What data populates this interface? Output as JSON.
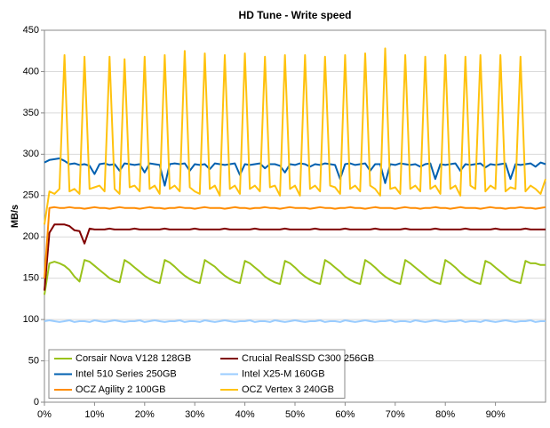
{
  "chart_data": {
    "type": "line",
    "title": "HD Tune - Write speed",
    "y_label": "MB/s",
    "xlim": [
      0,
      100
    ],
    "xticks": [
      {
        "value": 0,
        "label": "0%"
      },
      {
        "value": 10,
        "label": "10%"
      },
      {
        "value": 20,
        "label": "20%"
      },
      {
        "value": 30,
        "label": "30%"
      },
      {
        "value": 40,
        "label": "40%"
      },
      {
        "value": 50,
        "label": "50%"
      },
      {
        "value": 60,
        "label": "60%"
      },
      {
        "value": 70,
        "label": "70%"
      },
      {
        "value": 80,
        "label": "80%"
      },
      {
        "value": 90,
        "label": "90%"
      }
    ],
    "ylim": [
      0,
      450
    ],
    "yticks": [
      0,
      50,
      100,
      150,
      200,
      250,
      300,
      350,
      400,
      450
    ],
    "grid": true,
    "legend": "lower left",
    "x": [
      0,
      1,
      2,
      3,
      4,
      5,
      6,
      7,
      8,
      9,
      10,
      11,
      12,
      13,
      14,
      15,
      16,
      17,
      18,
      19,
      20,
      21,
      22,
      23,
      24,
      25,
      26,
      27,
      28,
      29,
      30,
      31,
      32,
      33,
      34,
      35,
      36,
      37,
      38,
      39,
      40,
      41,
      42,
      43,
      44,
      45,
      46,
      47,
      48,
      49,
      50,
      51,
      52,
      53,
      54,
      55,
      56,
      57,
      58,
      59,
      60,
      61,
      62,
      63,
      64,
      65,
      66,
      67,
      68,
      69,
      70,
      71,
      72,
      73,
      74,
      75,
      76,
      77,
      78,
      79,
      80,
      81,
      82,
      83,
      84,
      85,
      86,
      87,
      88,
      89,
      90,
      91,
      92,
      93,
      94,
      95,
      96,
      97,
      98,
      99,
      100
    ],
    "series": [
      {
        "name": "Corsair Nova V128 128GB",
        "color": "#99c21a",
        "values": [
          130,
          168,
          170,
          168,
          165,
          160,
          152,
          146,
          172,
          170,
          165,
          160,
          155,
          150,
          147,
          145,
          172,
          168,
          163,
          158,
          153,
          149,
          146,
          144,
          172,
          169,
          164,
          158,
          153,
          149,
          146,
          144,
          172,
          168,
          164,
          158,
          153,
          149,
          146,
          144,
          171,
          168,
          163,
          158,
          152,
          148,
          145,
          143,
          171,
          168,
          163,
          157,
          152,
          148,
          145,
          143,
          172,
          168,
          163,
          158,
          152,
          148,
          145,
          143,
          172,
          168,
          163,
          157,
          152,
          148,
          145,
          143,
          172,
          168,
          163,
          158,
          153,
          148,
          145,
          143,
          172,
          168,
          163,
          157,
          152,
          148,
          145,
          143,
          171,
          168,
          163,
          158,
          153,
          148,
          146,
          144,
          171,
          168,
          168,
          166,
          166
        ]
      },
      {
        "name": "Crucial RealSSD C300 256GB",
        "color": "#800000",
        "values": [
          135,
          205,
          215,
          215,
          215,
          213,
          208,
          207,
          192,
          210,
          209,
          209,
          209,
          210,
          209,
          209,
          209,
          209,
          210,
          209,
          209,
          209,
          209,
          209,
          210,
          209,
          209,
          209,
          209,
          209,
          210,
          209,
          209,
          209,
          209,
          209,
          210,
          209,
          209,
          209,
          209,
          209,
          210,
          209,
          209,
          209,
          209,
          209,
          210,
          209,
          209,
          209,
          209,
          209,
          210,
          209,
          209,
          209,
          209,
          209,
          210,
          209,
          209,
          209,
          209,
          209,
          210,
          209,
          209,
          209,
          209,
          209,
          210,
          209,
          209,
          209,
          209,
          209,
          210,
          209,
          209,
          209,
          209,
          209,
          210,
          209,
          209,
          209,
          209,
          209,
          210,
          209,
          209,
          209,
          209,
          209,
          210,
          209,
          209,
          209,
          209
        ]
      },
      {
        "name": "Intel 510 Series 250GB",
        "color": "#0060b0",
        "values": [
          290,
          293,
          294,
          295,
          292,
          288,
          289,
          287,
          288,
          286,
          276,
          288,
          289,
          287,
          288,
          280,
          289,
          288,
          287,
          288,
          278,
          289,
          288,
          287,
          262,
          288,
          289,
          288,
          289,
          280,
          288,
          287,
          288,
          282,
          289,
          288,
          287,
          288,
          289,
          275,
          288,
          287,
          288,
          289,
          283,
          288,
          288,
          286,
          278,
          288,
          287,
          289,
          288,
          285,
          288,
          287,
          289,
          288,
          287,
          270,
          288,
          289,
          287,
          288,
          289,
          280,
          288,
          288,
          265,
          288,
          287,
          289,
          288,
          287,
          288,
          285,
          288,
          289,
          270,
          288,
          287,
          288,
          289,
          280,
          288,
          287,
          288,
          289,
          284,
          288,
          287,
          288,
          289,
          270,
          288,
          287,
          288,
          289,
          285,
          290,
          288
        ]
      },
      {
        "name": "Intel X25-M 160GB",
        "color": "#99ccff",
        "values": [
          98,
          99,
          98,
          97,
          98,
          99,
          97,
          98,
          98,
          97,
          99,
          98,
          97,
          98,
          99,
          98,
          97,
          98,
          98,
          99,
          97,
          98,
          99,
          98,
          97,
          98,
          98,
          99,
          97,
          98,
          98,
          97,
          99,
          98,
          97,
          98,
          99,
          98,
          97,
          98,
          98,
          99,
          97,
          98,
          98,
          97,
          99,
          98,
          97,
          98,
          99,
          98,
          97,
          98,
          98,
          99,
          97,
          98,
          98,
          97,
          99,
          98,
          97,
          98,
          99,
          98,
          97,
          98,
          98,
          99,
          97,
          98,
          98,
          97,
          99,
          98,
          97,
          98,
          99,
          98,
          97,
          98,
          98,
          99,
          97,
          98,
          98,
          97,
          99,
          98,
          97,
          98,
          99,
          98,
          97,
          98,
          98,
          99,
          97,
          98,
          98
        ]
      },
      {
        "name": "OCZ Agility 2 100GB",
        "color": "#ff8c00",
        "values": [
          150,
          235,
          236,
          235,
          235,
          236,
          235,
          235,
          234,
          235,
          236,
          235,
          235,
          234,
          235,
          236,
          235,
          235,
          235,
          234,
          235,
          236,
          235,
          235,
          234,
          235,
          235,
          236,
          235,
          235,
          234,
          235,
          236,
          235,
          235,
          235,
          234,
          235,
          236,
          235,
          235,
          234,
          235,
          235,
          236,
          235,
          235,
          234,
          235,
          236,
          235,
          235,
          235,
          234,
          235,
          236,
          235,
          235,
          234,
          235,
          235,
          236,
          235,
          235,
          234,
          235,
          236,
          235,
          235,
          235,
          234,
          235,
          236,
          235,
          235,
          234,
          235,
          235,
          236,
          235,
          235,
          234,
          235,
          236,
          235,
          235,
          235,
          234,
          235,
          236,
          235,
          235,
          234,
          235,
          235,
          236,
          235,
          235,
          234,
          235,
          236
        ]
      },
      {
        "name": "OCZ Vertex 3 240GB",
        "color": "#ffc20e",
        "values": [
          215,
          255,
          252,
          258,
          420,
          255,
          258,
          252,
          418,
          258,
          260,
          262,
          255,
          418,
          258,
          252,
          415,
          260,
          262,
          255,
          418,
          258,
          262,
          252,
          420,
          258,
          262,
          255,
          425,
          260,
          255,
          252,
          422,
          258,
          262,
          250,
          420,
          258,
          262,
          252,
          422,
          258,
          262,
          255,
          418,
          260,
          262,
          250,
          420,
          258,
          262,
          250,
          420,
          258,
          262,
          255,
          418,
          262,
          260,
          252,
          420,
          258,
          262,
          255,
          422,
          262,
          258,
          250,
          428,
          258,
          260,
          252,
          420,
          258,
          262,
          255,
          418,
          258,
          262,
          252,
          420,
          258,
          262,
          250,
          418,
          262,
          258,
          420,
          255,
          262,
          258,
          420,
          255,
          260,
          258,
          418,
          255,
          262,
          258,
          252,
          270
        ]
      }
    ]
  }
}
